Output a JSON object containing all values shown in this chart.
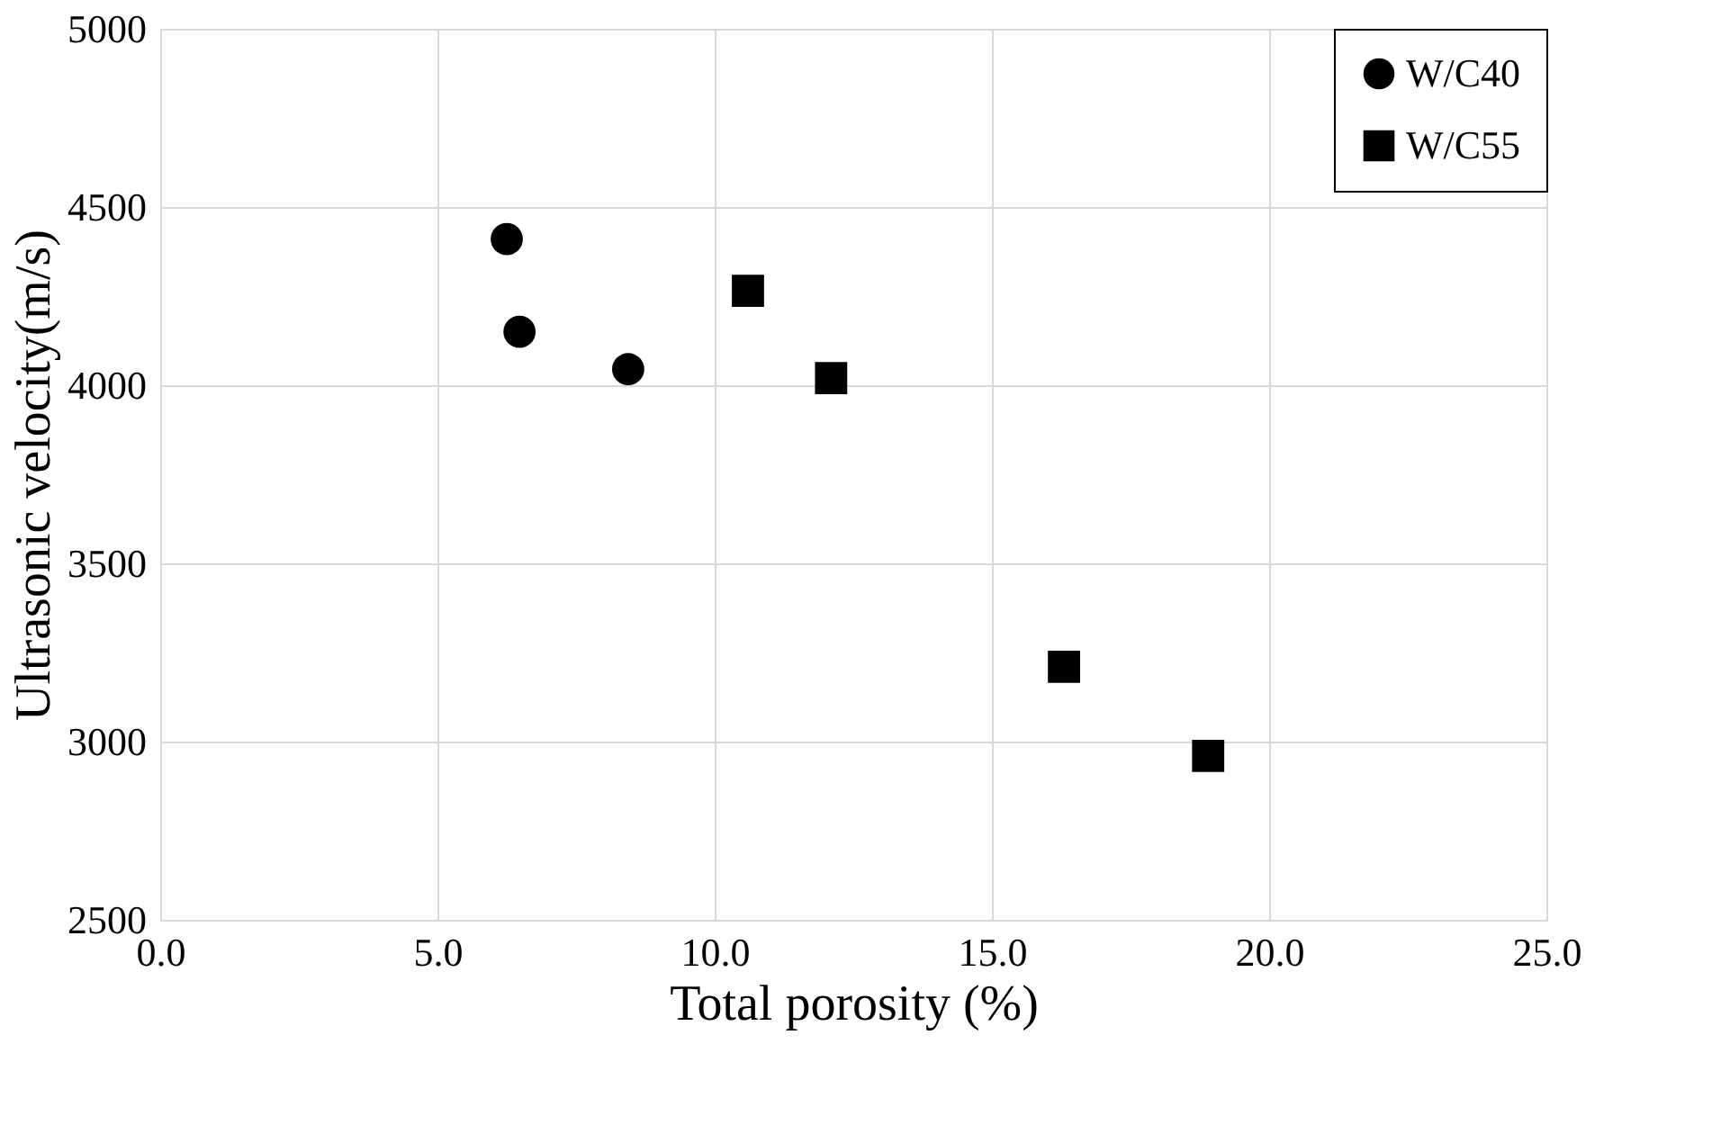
{
  "chart_data": {
    "type": "scatter",
    "xlabel": "Total porosity (%)",
    "ylabel": "Ultrasonic velocity(m/s)",
    "xlim": [
      0,
      25
    ],
    "xticks": [
      {
        "value": 0,
        "label": "0.0"
      },
      {
        "value": 5,
        "label": "5.0"
      },
      {
        "value": 10,
        "label": "10.0"
      },
      {
        "value": 15,
        "label": "15.0"
      },
      {
        "value": 20,
        "label": "20.0"
      },
      {
        "value": 25,
        "label": "25.0"
      }
    ],
    "ylim": [
      2500,
      5000
    ],
    "yticks": [
      2500,
      3000,
      3500,
      4000,
      4500,
      5000
    ],
    "grid": true,
    "legend": "top right",
    "series": [
      {
        "name": "W/C40",
        "color": "#000000",
        "marker": "circle",
        "x": [
          6.25,
          6.48,
          8.44
        ],
        "values": [
          4410,
          4150,
          4045
        ]
      },
      {
        "name": "W/C55",
        "color": "#000000",
        "marker": "square",
        "x": [
          10.6,
          12.1,
          16.3,
          18.9
        ],
        "values": [
          4265,
          4020,
          3210,
          2960
        ]
      }
    ]
  }
}
